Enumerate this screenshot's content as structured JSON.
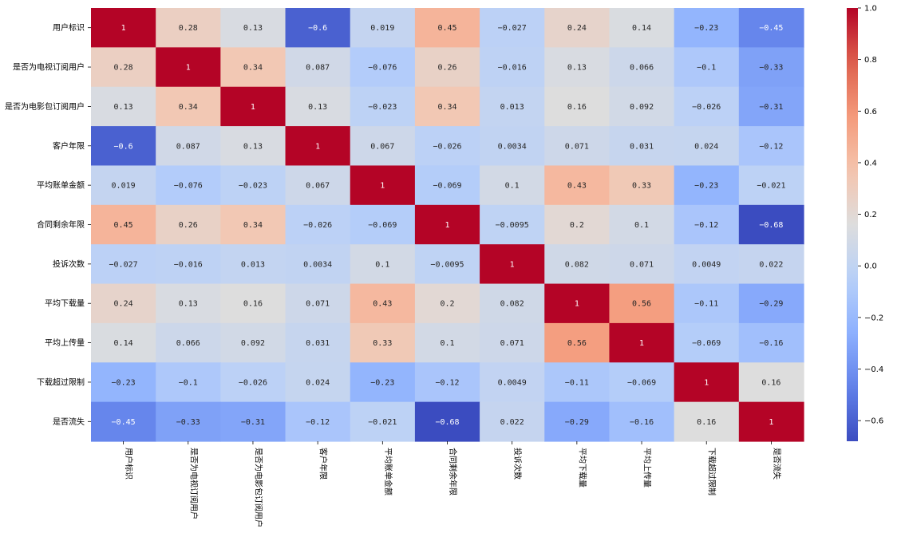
{
  "chart_data": {
    "type": "heatmap",
    "title": "",
    "xlabel": "",
    "ylabel": "",
    "colormap": "coolwarm",
    "vmin": -0.68,
    "vmax": 1.0,
    "labels": [
      "用户标识",
      "是否为电视订阅用户",
      "是否为电影包订阅用户",
      "客户年限",
      "平均账单金额",
      "合同剩余年限",
      "投诉次数",
      "平均下载量",
      "平均上传量",
      "下载超过限制",
      "是否流失"
    ],
    "matrix": [
      [
        1,
        0.28,
        0.13,
        -0.6,
        0.019,
        0.45,
        -0.027,
        0.24,
        0.14,
        -0.23,
        -0.45
      ],
      [
        0.28,
        1,
        0.34,
        0.087,
        -0.076,
        0.26,
        -0.016,
        0.13,
        0.066,
        -0.1,
        -0.33
      ],
      [
        0.13,
        0.34,
        1,
        0.13,
        -0.023,
        0.34,
        0.013,
        0.16,
        0.092,
        -0.026,
        -0.31
      ],
      [
        -0.6,
        0.087,
        0.13,
        1,
        0.067,
        -0.026,
        0.0034,
        0.071,
        0.031,
        0.024,
        -0.12
      ],
      [
        0.019,
        -0.076,
        -0.023,
        0.067,
        1,
        -0.069,
        0.1,
        0.43,
        0.33,
        -0.23,
        -0.021
      ],
      [
        0.45,
        0.26,
        0.34,
        -0.026,
        -0.069,
        1,
        -0.0095,
        0.2,
        0.1,
        -0.12,
        -0.68
      ],
      [
        -0.027,
        -0.016,
        0.013,
        0.0034,
        0.1,
        -0.0095,
        1,
        0.082,
        0.071,
        0.0049,
        0.022
      ],
      [
        0.24,
        0.13,
        0.16,
        0.071,
        0.43,
        0.2,
        0.082,
        1,
        0.56,
        -0.11,
        -0.29
      ],
      [
        0.14,
        0.066,
        0.092,
        0.031,
        0.33,
        0.1,
        0.071,
        0.56,
        1,
        -0.069,
        -0.16
      ],
      [
        -0.23,
        -0.1,
        -0.026,
        0.024,
        -0.23,
        -0.12,
        0.0049,
        -0.11,
        -0.069,
        1,
        0.16
      ],
      [
        -0.45,
        -0.33,
        -0.31,
        -0.12,
        -0.021,
        -0.68,
        0.022,
        -0.29,
        -0.16,
        0.16,
        1
      ]
    ],
    "cell_labels": [
      [
        "1",
        "0.28",
        "0.13",
        "-0.6",
        "0.019",
        "0.45",
        "-0.027",
        "0.24",
        "0.14",
        "-0.23",
        "-0.45"
      ],
      [
        "0.28",
        "1",
        "0.34",
        "0.087",
        "-0.076",
        "0.26",
        "-0.016",
        "0.13",
        "0.066",
        "-0.1",
        "-0.33"
      ],
      [
        "0.13",
        "0.34",
        "1",
        "0.13",
        "-0.023",
        "0.34",
        "0.013",
        "0.16",
        "0.092",
        "-0.026",
        "-0.31"
      ],
      [
        "-0.6",
        "0.087",
        "0.13",
        "1",
        "0.067",
        "-0.026",
        "0.0034",
        "0.071",
        "0.031",
        "0.024",
        "-0.12"
      ],
      [
        "0.019",
        "-0.076",
        "-0.023",
        "0.067",
        "1",
        "-0.069",
        "0.1",
        "0.43",
        "0.33",
        "-0.23",
        "-0.021"
      ],
      [
        "0.45",
        "0.26",
        "0.34",
        "-0.026",
        "-0.069",
        "1",
        "-0.0095",
        "0.2",
        "0.1",
        "-0.12",
        "-0.68"
      ],
      [
        "-0.027",
        "-0.016",
        "0.013",
        "0.0034",
        "0.1",
        "-0.0095",
        "1",
        "0.082",
        "0.071",
        "0.0049",
        "0.022"
      ],
      [
        "0.24",
        "0.13",
        "0.16",
        "0.071",
        "0.43",
        "0.2",
        "0.082",
        "1",
        "0.56",
        "-0.11",
        "-0.29"
      ],
      [
        "0.14",
        "0.066",
        "0.092",
        "0.031",
        "0.33",
        "0.1",
        "0.071",
        "0.56",
        "1",
        "-0.069",
        "-0.16"
      ],
      [
        "-0.23",
        "-0.1",
        "-0.026",
        "0.024",
        "-0.23",
        "-0.12",
        "0.0049",
        "-0.11",
        "-0.069",
        "1",
        "0.16"
      ],
      [
        "-0.45",
        "-0.33",
        "-0.31",
        "-0.12",
        "-0.021",
        "-0.68",
        "0.022",
        "-0.29",
        "-0.16",
        "0.16",
        "1"
      ]
    ],
    "colorbar": {
      "ticks": [
        1.0,
        0.8,
        0.6,
        0.4,
        0.2,
        0.0,
        -0.2,
        -0.4,
        -0.6
      ],
      "tick_labels": [
        "1.0",
        "0.8",
        "0.6",
        "0.4",
        "0.2",
        "0.0",
        "−0.2",
        "−0.4",
        "−0.6"
      ]
    },
    "grid": false,
    "legend": "colorbar-right"
  }
}
